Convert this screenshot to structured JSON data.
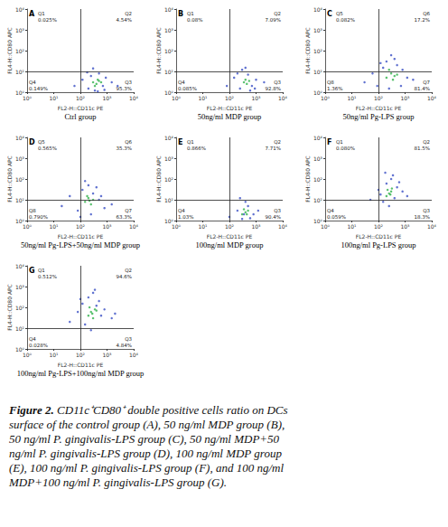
{
  "chart_data": [
    {
      "type": "scatter",
      "panel": "A",
      "title": "Ctrl group",
      "xlabel": "FL2-H::CD11c PE",
      "ylabel": "FL4-H::CD80 APC",
      "log": true,
      "grid": false,
      "xlim": [
        1,
        10000
      ],
      "ylim": [
        1,
        10000
      ],
      "xticks": [
        {
          "value": 1,
          "label": "10⁰"
        },
        {
          "value": 10,
          "label": "10¹"
        },
        {
          "value": 100,
          "label": "10²"
        },
        {
          "value": 1000,
          "label": "10³"
        },
        {
          "value": 10000,
          "label": "10⁴"
        }
      ],
      "yticks": [
        {
          "value": 1,
          "label": "10⁰"
        },
        {
          "value": 10,
          "label": "10¹"
        },
        {
          "value": 100,
          "label": "10²"
        },
        {
          "value": 1000,
          "label": "10³"
        },
        {
          "value": 10000,
          "label": "10⁴"
        }
      ],
      "gate": {
        "x": 100,
        "y": 10
      },
      "quadrants": [
        {
          "name": "Q1",
          "value": 0.025,
          "label": "0.025%"
        },
        {
          "name": "Q2",
          "value": 4.54,
          "label": "4.54%"
        },
        {
          "name": "Q3",
          "value": 95.3,
          "label": "95.3%"
        },
        {
          "name": "Q4",
          "value": 0.149,
          "label": "0.149%"
        }
      ],
      "series": [
        {
          "color": "#3a4fc4",
          "x": [
            60,
            120,
            200,
            250,
            350,
            500,
            700,
            900,
            1500,
            2500,
            300,
            180,
            800,
            450
          ],
          "y": [
            2,
            4,
            1.5,
            6,
            1.2,
            8,
            2,
            5,
            3,
            2,
            14,
            9,
            1.3,
            1.1
          ]
        },
        {
          "color": "#2fb24a",
          "x": [
            300,
            400,
            500,
            350,
            600,
            450
          ],
          "y": [
            3,
            2.5,
            3.5,
            2,
            3,
            4
          ]
        }
      ]
    },
    {
      "type": "scatter",
      "panel": "B",
      "title": "50ng/ml MDP group",
      "xlabel": "FL2-H::CD11c PE",
      "ylabel": "FL4-H::CD80 APC",
      "log": true,
      "grid": false,
      "xlim": [
        1,
        10000
      ],
      "ylim": [
        1,
        10000
      ],
      "xticks": [
        {
          "value": 1,
          "label": "10⁰"
        },
        {
          "value": 10,
          "label": "10¹"
        },
        {
          "value": 100,
          "label": "10²"
        },
        {
          "value": 1000,
          "label": "10³"
        },
        {
          "value": 10000,
          "label": "10⁴"
        }
      ],
      "yticks": [
        {
          "value": 1,
          "label": "10⁰"
        },
        {
          "value": 10,
          "label": "10¹"
        },
        {
          "value": 100,
          "label": "10²"
        },
        {
          "value": 1000,
          "label": "10³"
        },
        {
          "value": 10000,
          "label": "10⁴"
        }
      ],
      "gate": {
        "x": 100,
        "y": 10
      },
      "quadrants": [
        {
          "name": "Q1",
          "value": 0.08,
          "label": "0.08%"
        },
        {
          "name": "Q2",
          "value": 7.09,
          "label": "7.09%"
        },
        {
          "name": "Q3",
          "value": 92.8,
          "label": "92.8%"
        },
        {
          "name": "Q4",
          "value": 0.085,
          "label": "0.085%"
        }
      ],
      "series": [
        {
          "color": "#3a4fc4",
          "x": [
            80,
            150,
            250,
            300,
            500,
            700,
            1000,
            2000,
            400,
            600,
            200,
            900
          ],
          "y": [
            2,
            5,
            1.5,
            12,
            7,
            2,
            4,
            3,
            15,
            1.2,
            8,
            1.5
          ]
        },
        {
          "color": "#2fb24a",
          "x": [
            350,
            450,
            550,
            400
          ],
          "y": [
            3,
            2.5,
            3.5,
            4
          ]
        }
      ]
    },
    {
      "type": "scatter",
      "panel": "C",
      "title": "50ng/ml Pg-LPS group",
      "xlabel": "FL2-H::CD11c PE",
      "ylabel": "FL4-H::CD80 APC",
      "log": true,
      "grid": false,
      "xlim": [
        1,
        10000
      ],
      "ylim": [
        1,
        10000
      ],
      "xticks": [
        {
          "value": 1,
          "label": "10⁰"
        },
        {
          "value": 10,
          "label": "10¹"
        },
        {
          "value": 100,
          "label": "10²"
        },
        {
          "value": 1000,
          "label": "10³"
        },
        {
          "value": 10000,
          "label": "10⁴"
        }
      ],
      "yticks": [
        {
          "value": 1,
          "label": "10⁰"
        },
        {
          "value": 10,
          "label": "10¹"
        },
        {
          "value": 100,
          "label": "10²"
        },
        {
          "value": 1000,
          "label": "10³"
        },
        {
          "value": 10000,
          "label": "10⁴"
        }
      ],
      "gate": {
        "x": 100,
        "y": 10
      },
      "quadrants": [
        {
          "name": "Q5",
          "value": 0.082,
          "label": "0.082%"
        },
        {
          "name": "Q6",
          "value": 17.2,
          "label": "17.2%"
        },
        {
          "name": "Q7",
          "value": 81.4,
          "label": "81.4%"
        },
        {
          "name": "Q8",
          "value": 1.36,
          "label": "1.36%"
        }
      ],
      "series": [
        {
          "color": "#3a4fc4",
          "x": [
            30,
            60,
            90,
            150,
            200,
            300,
            500,
            800,
            1200,
            2000,
            250,
            400,
            700,
            120
          ],
          "y": [
            3,
            8,
            2,
            15,
            30,
            60,
            20,
            12,
            5,
            4,
            1.5,
            40,
            2,
            25
          ]
        },
        {
          "color": "#2fb24a",
          "x": [
            200,
            300,
            400,
            250,
            350,
            500
          ],
          "y": [
            5,
            8,
            6,
            12,
            4,
            7
          ]
        }
      ]
    },
    {
      "type": "scatter",
      "panel": "D",
      "title": "50ng/ml Pg-LPS+50ng/ml MDP group",
      "xlabel": "FL2-H::CD11c PE",
      "ylabel": "FL4-H::CD80 APC",
      "log": true,
      "grid": false,
      "xlim": [
        1,
        10000
      ],
      "ylim": [
        1,
        10000
      ],
      "xticks": [
        {
          "value": 1,
          "label": "10⁰"
        },
        {
          "value": 10,
          "label": "10¹"
        },
        {
          "value": 100,
          "label": "10²"
        },
        {
          "value": 1000,
          "label": "10³"
        },
        {
          "value": 10000,
          "label": "10⁴"
        }
      ],
      "yticks": [
        {
          "value": 1,
          "label": "10⁰"
        },
        {
          "value": 10,
          "label": "10¹"
        },
        {
          "value": 100,
          "label": "10²"
        },
        {
          "value": 1000,
          "label": "10³"
        },
        {
          "value": 10000,
          "label": "10⁴"
        }
      ],
      "gate": {
        "x": 100,
        "y": 10
      },
      "quadrants": [
        {
          "name": "Q5",
          "value": 0.565,
          "label": "0.565%"
        },
        {
          "name": "Q6",
          "value": 35.3,
          "label": "35.3%"
        },
        {
          "name": "Q7",
          "value": 63.3,
          "label": "63.3%"
        },
        {
          "name": "Q8",
          "value": 0.79,
          "label": "0.790%"
        }
      ],
      "series": [
        {
          "color": "#3a4fc4",
          "x": [
            20,
            40,
            80,
            120,
            200,
            300,
            500,
            800,
            1500,
            150,
            250,
            400,
            600,
            100
          ],
          "y": [
            5,
            15,
            3,
            30,
            50,
            20,
            10,
            4,
            6,
            80,
            2,
            40,
            15,
            1.5
          ]
        },
        {
          "color": "#2fb24a",
          "x": [
            150,
            200,
            250,
            300,
            180,
            220
          ],
          "y": [
            8,
            12,
            6,
            10,
            15,
            9
          ]
        }
      ]
    },
    {
      "type": "scatter",
      "panel": "E",
      "title": "100ng/ml MDP group",
      "xlabel": "FL2-H::CD11c PE",
      "ylabel": "FL4-H::CD80 APC",
      "log": true,
      "grid": false,
      "xlim": [
        1,
        10000
      ],
      "ylim": [
        1,
        10000
      ],
      "xticks": [
        {
          "value": 1,
          "label": "10⁰"
        },
        {
          "value": 10,
          "label": "10¹"
        },
        {
          "value": 100,
          "label": "10²"
        },
        {
          "value": 1000,
          "label": "10³"
        },
        {
          "value": 10000,
          "label": "10⁴"
        }
      ],
      "yticks": [
        {
          "value": 1,
          "label": "10⁰"
        },
        {
          "value": 10,
          "label": "10¹"
        },
        {
          "value": 100,
          "label": "10²"
        },
        {
          "value": 1000,
          "label": "10³"
        },
        {
          "value": 10000,
          "label": "10⁴"
        }
      ],
      "gate": {
        "x": 100,
        "y": 10
      },
      "quadrants": [
        {
          "name": "Q1",
          "value": 0.866,
          "label": "0.866%"
        },
        {
          "name": "Q2",
          "value": 7.71,
          "label": "7.71%"
        },
        {
          "name": "Q3",
          "value": 90.4,
          "label": "90.4%"
        },
        {
          "name": "Q4",
          "value": 1.03,
          "label": "1.03%"
        }
      ],
      "series": [
        {
          "color": "#3a4fc4",
          "x": [
            100,
            200,
            300,
            500,
            800,
            1200,
            400,
            600,
            250,
            350
          ],
          "y": [
            1.5,
            3,
            1.2,
            5,
            2,
            3,
            8,
            1.3,
            12,
            2
          ]
        },
        {
          "color": "#2fb24a",
          "x": [
            300,
            400,
            500,
            350,
            450
          ],
          "y": [
            2,
            2.5,
            3,
            3.5,
            2
          ]
        }
      ]
    },
    {
      "type": "scatter",
      "panel": "F",
      "title": "100ng/ml Pg-LPS group",
      "xlabel": "FL2-H::CD11c PE",
      "ylabel": "FL4-H::CD80 APC",
      "log": true,
      "grid": false,
      "xlim": [
        1,
        10000
      ],
      "ylim": [
        1,
        10000
      ],
      "xticks": [
        {
          "value": 1,
          "label": "10⁰"
        },
        {
          "value": 10,
          "label": "10¹"
        },
        {
          "value": 100,
          "label": "10²"
        },
        {
          "value": 1000,
          "label": "10³"
        },
        {
          "value": 10000,
          "label": "10⁴"
        }
      ],
      "yticks": [
        {
          "value": 1,
          "label": "10⁰"
        },
        {
          "value": 10,
          "label": "10¹"
        },
        {
          "value": 100,
          "label": "10²"
        },
        {
          "value": 1000,
          "label": "10³"
        },
        {
          "value": 10000,
          "label": "10⁴"
        }
      ],
      "gate": {
        "x": 100,
        "y": 10
      },
      "quadrants": [
        {
          "name": "Q1",
          "value": 0.08,
          "label": "0.080%"
        },
        {
          "name": "Q2",
          "value": 81.5,
          "label": "81.5%"
        },
        {
          "name": "Q3",
          "value": 18.3,
          "label": "18.3%"
        },
        {
          "name": "Q4",
          "value": 0.059,
          "label": "0.059%"
        }
      ],
      "series": [
        {
          "color": "#3a4fc4",
          "x": [
            50,
            100,
            150,
            200,
            300,
            500,
            800,
            1200,
            250,
            400,
            180,
            600,
            120,
            350
          ],
          "y": [
            10,
            30,
            8,
            60,
            100,
            40,
            25,
            15,
            5,
            12,
            200,
            70,
            18,
            150
          ]
        },
        {
          "color": "#2fb24a",
          "x": [
            200,
            250,
            300,
            220,
            280,
            320
          ],
          "y": [
            15,
            20,
            25,
            30,
            18,
            35
          ]
        }
      ]
    },
    {
      "type": "scatter",
      "panel": "G",
      "title": "100ng/ml Pg-LPS+100ng/ml MDP group",
      "xlabel": "FL2-H::CD11c PE",
      "ylabel": "FL4-H::CD80 APC",
      "log": true,
      "grid": false,
      "xlim": [
        1,
        10000
      ],
      "ylim": [
        1,
        10000
      ],
      "xticks": [
        {
          "value": 1,
          "label": "10⁰"
        },
        {
          "value": 10,
          "label": "10¹"
        },
        {
          "value": 100,
          "label": "10²"
        },
        {
          "value": 1000,
          "label": "10³"
        },
        {
          "value": 10000,
          "label": "10⁴"
        }
      ],
      "yticks": [
        {
          "value": 1,
          "label": "10⁰"
        },
        {
          "value": 10,
          "label": "10¹"
        },
        {
          "value": 100,
          "label": "10²"
        },
        {
          "value": 1000,
          "label": "10³"
        },
        {
          "value": 10000,
          "label": "10⁴"
        }
      ],
      "gate": {
        "x": 100,
        "y": 10
      },
      "quadrants": [
        {
          "name": "Q1",
          "value": 0.512,
          "label": "0.512%"
        },
        {
          "name": "Q2",
          "value": 94.6,
          "label": "94.6%"
        },
        {
          "name": "Q3",
          "value": 4.84,
          "label": "4.84%"
        },
        {
          "name": "Q4",
          "value": 0.028,
          "label": "0.028%"
        }
      ],
      "series": [
        {
          "color": "#3a4fc4",
          "x": [
            40,
            80,
            120,
            200,
            300,
            500,
            800,
            1500,
            150,
            250,
            400,
            600,
            100,
            2000,
            350
          ],
          "y": [
            20,
            60,
            150,
            300,
            500,
            200,
            80,
            30,
            15,
            8,
            120,
            40,
            250,
            50,
            700
          ]
        },
        {
          "color": "#2fb24a",
          "x": [
            200,
            250,
            300,
            350,
            220,
            280,
            400
          ],
          "y": [
            40,
            60,
            30,
            80,
            100,
            50,
            70
          ]
        }
      ]
    }
  ],
  "caption": {
    "label": "Figure 2.",
    "text": "CD11c⁺CD80⁺ double positive cells ratio on DCs surface of the control group (A), 50 ng/ml MDP group (B), 50 ng/ml P. gingivalis-LPS group (C), 50 ng/ml MDP+50 ng/ml P. gingivalis-LPS group (D), 100 ng/ml MDP group (E), 100 ng/ml P. gingivalis-LPS group (F), and 100 ng/ml MDP+100 ng/ml P. gingivalis-LPS group (G)."
  }
}
